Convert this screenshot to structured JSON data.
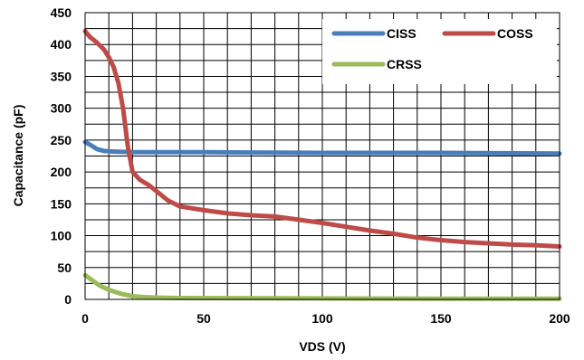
{
  "chart_data": {
    "type": "line",
    "xlabel": "VDS (V)",
    "ylabel": "Capacitance (pF)",
    "xlim": [
      0,
      200
    ],
    "ylim": [
      0,
      450
    ],
    "xticks": [
      0,
      50,
      100,
      150,
      200
    ],
    "yticks": [
      0,
      50,
      100,
      150,
      200,
      250,
      300,
      350,
      400,
      450
    ],
    "x_tick_labels": [
      "0",
      "50",
      "100",
      "150",
      "200"
    ],
    "y_tick_labels": [
      "0",
      "50",
      "100",
      "150",
      "200",
      "250",
      "300",
      "350",
      "400",
      "450"
    ],
    "grid": true,
    "legend_position": "top-right",
    "series": [
      {
        "name": "CISS",
        "color": "#4a7ebb",
        "points": [
          [
            0,
            247
          ],
          [
            2,
            243
          ],
          [
            5,
            236
          ],
          [
            8,
            233
          ],
          [
            12,
            232
          ],
          [
            20,
            231
          ],
          [
            50,
            231
          ],
          [
            100,
            230
          ],
          [
            150,
            230
          ],
          [
            200,
            229
          ]
        ]
      },
      {
        "name": "COSS",
        "color": "#be4b48",
        "points": [
          [
            0,
            421
          ],
          [
            2,
            412
          ],
          [
            5,
            403
          ],
          [
            8,
            392
          ],
          [
            10,
            380
          ],
          [
            12,
            365
          ],
          [
            14,
            340
          ],
          [
            16,
            300
          ],
          [
            18,
            240
          ],
          [
            20,
            200
          ],
          [
            23,
            188
          ],
          [
            27,
            179
          ],
          [
            30,
            170
          ],
          [
            35,
            155
          ],
          [
            40,
            146
          ],
          [
            50,
            140
          ],
          [
            60,
            135
          ],
          [
            70,
            132
          ],
          [
            80,
            130
          ],
          [
            90,
            125
          ],
          [
            100,
            120
          ],
          [
            110,
            114
          ],
          [
            120,
            108
          ],
          [
            130,
            103
          ],
          [
            140,
            97
          ],
          [
            150,
            93
          ],
          [
            160,
            90
          ],
          [
            170,
            88
          ],
          [
            180,
            86
          ],
          [
            190,
            85
          ],
          [
            200,
            83
          ]
        ]
      },
      {
        "name": "CRSS",
        "color": "#9bbb59",
        "points": [
          [
            0,
            38
          ],
          [
            3,
            30
          ],
          [
            6,
            22
          ],
          [
            10,
            15
          ],
          [
            15,
            9
          ],
          [
            20,
            5
          ],
          [
            25,
            3.5
          ],
          [
            30,
            2.8
          ],
          [
            40,
            2.2
          ],
          [
            60,
            2
          ],
          [
            100,
            1.5
          ],
          [
            150,
            1.2
          ],
          [
            200,
            1
          ]
        ]
      }
    ]
  }
}
